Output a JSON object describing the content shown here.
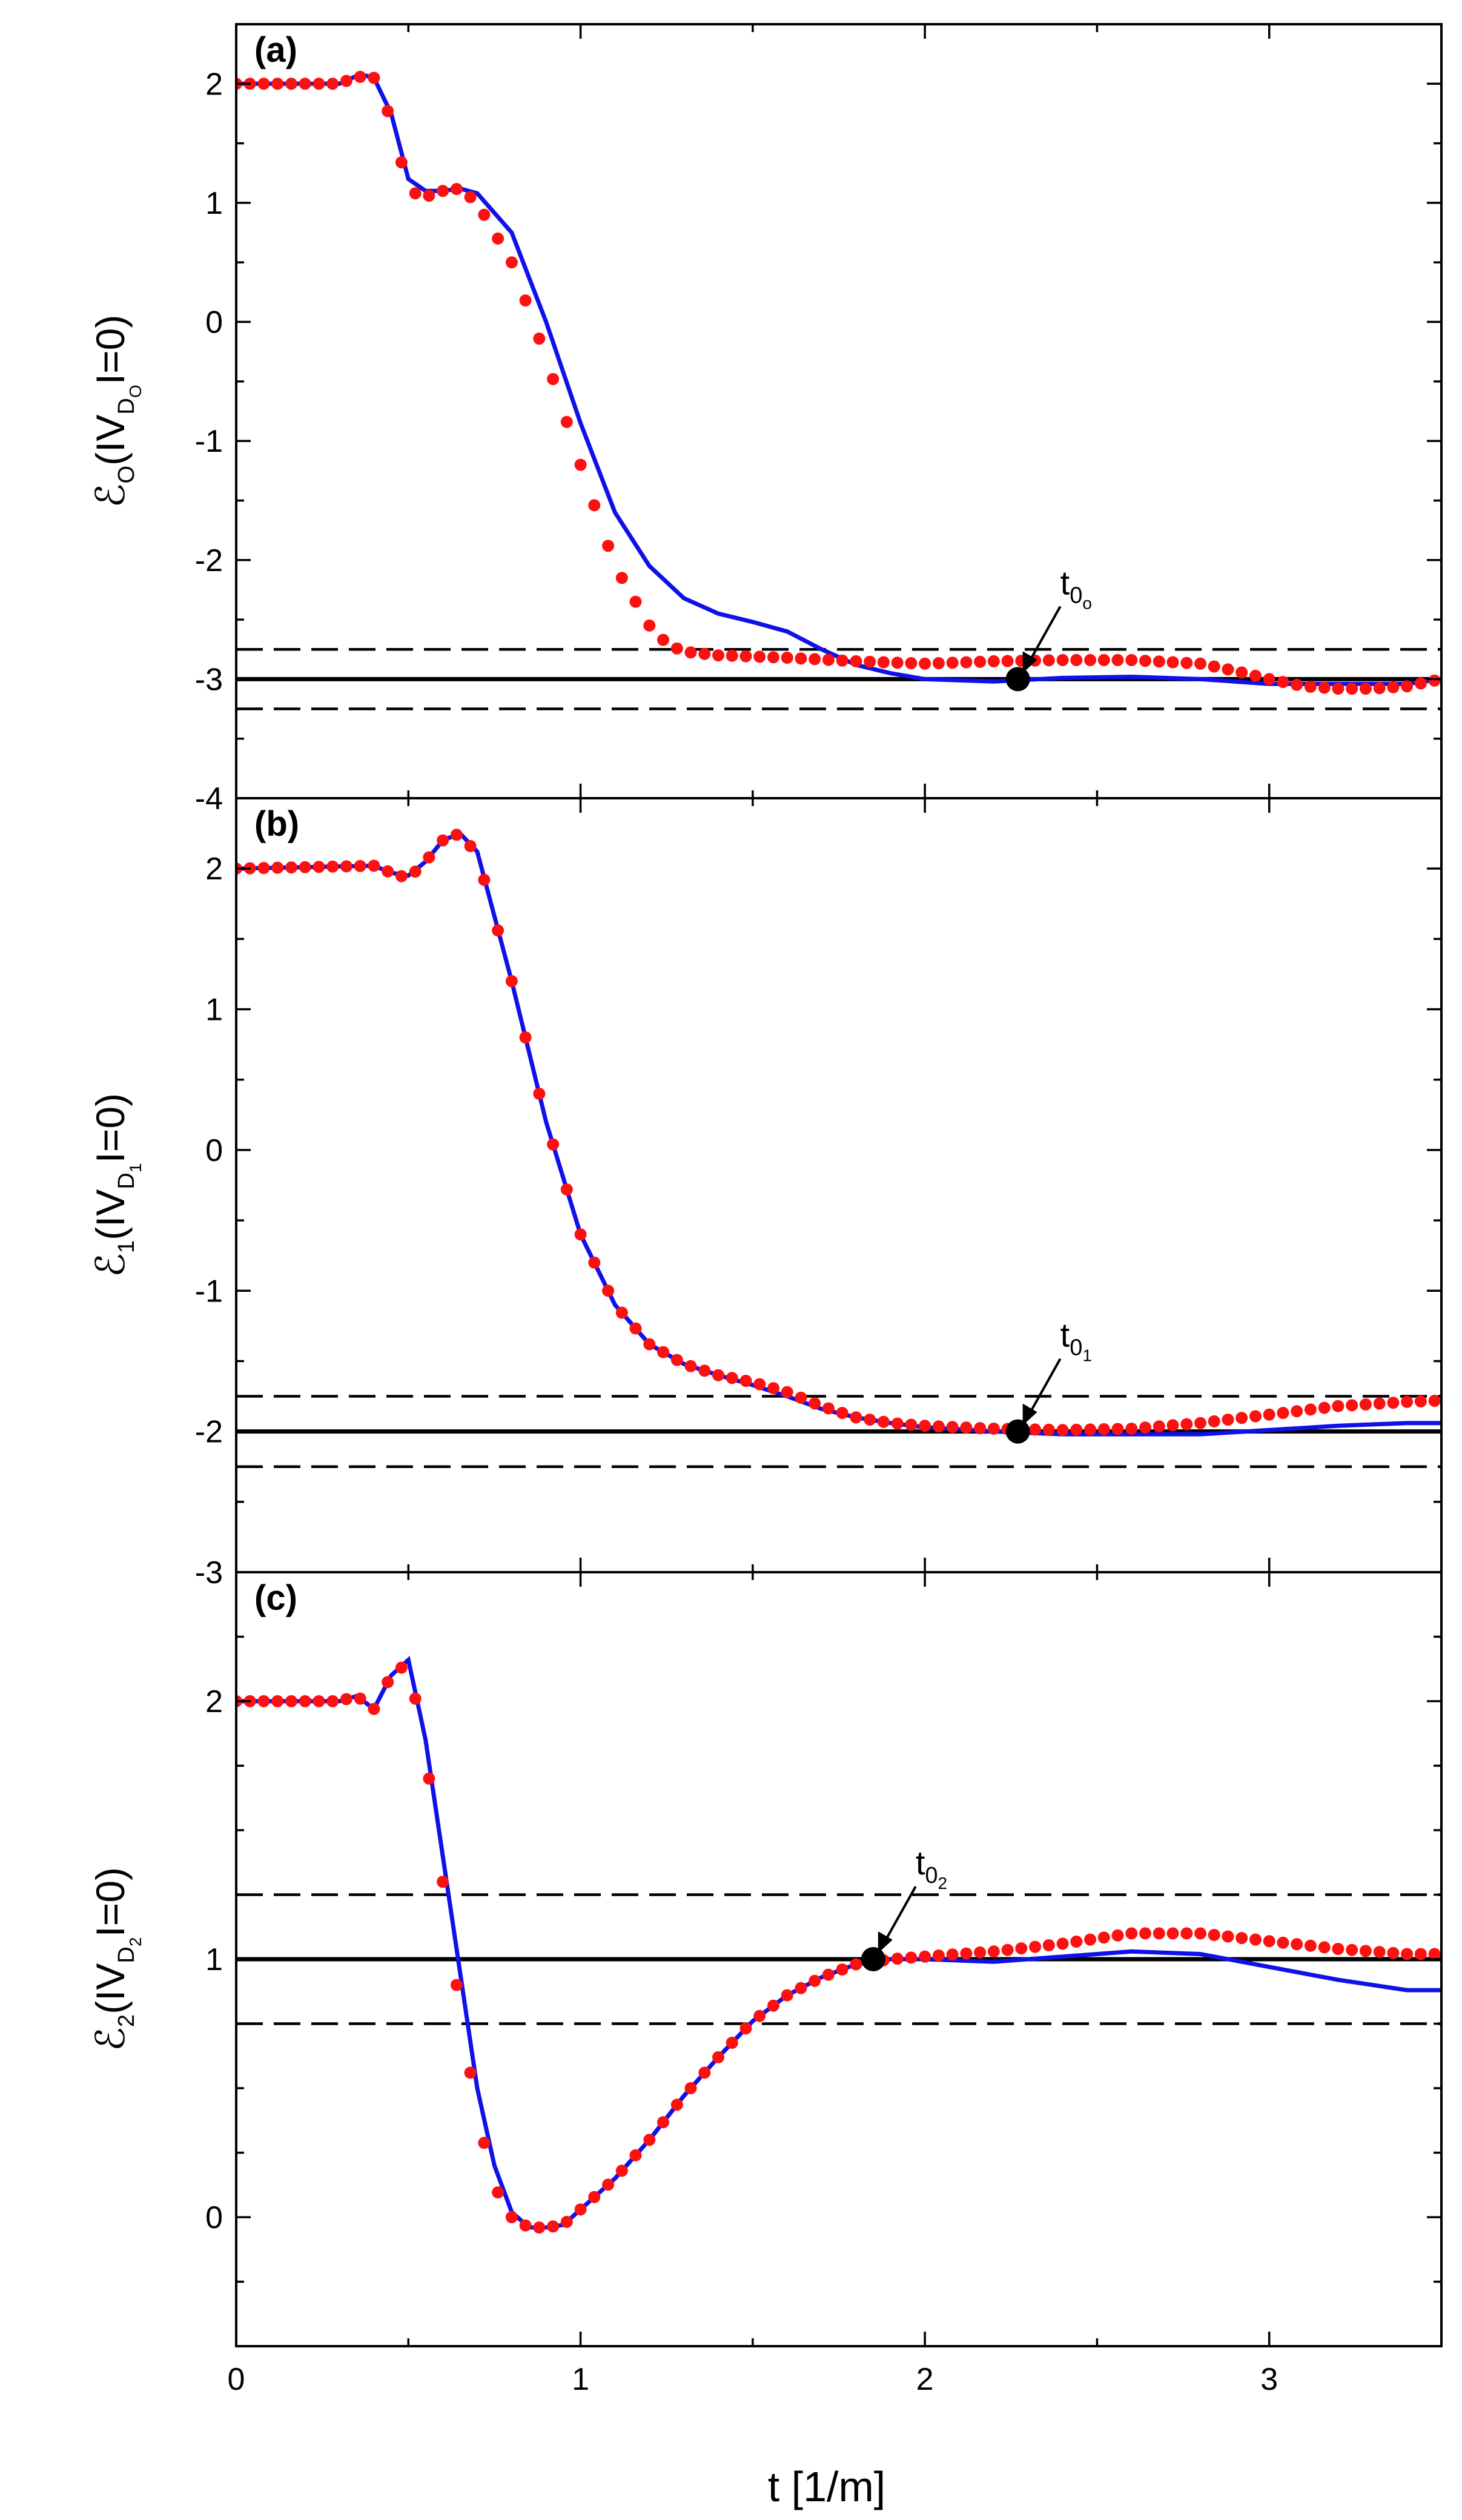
{
  "chart_data": [
    {
      "type": "line",
      "panel_label": "(a)",
      "ylabel": {
        "symbol": "ℰ",
        "sub": "O",
        "text": "(IV",
        "sub2": "D",
        "sub3": "O",
        "tail": "I=0)"
      },
      "xlim": [
        0,
        3.5
      ],
      "ylim": [
        -4,
        2.5
      ],
      "y_ticks": [
        -4,
        -3,
        -2,
        -1,
        0,
        1,
        2
      ],
      "y_tick_labels": [
        "-4",
        "-3",
        "-2",
        "-1",
        "0",
        "1",
        "2"
      ],
      "reference": {
        "solid": -3,
        "dashed": [
          -2.75,
          -3.25
        ]
      },
      "marker": {
        "x": 2.27,
        "y": -3,
        "label": "t",
        "sub": "0",
        "subsub": "o"
      },
      "series": [
        {
          "name": "solid-blue",
          "x": [
            0,
            0.3,
            0.36,
            0.4,
            0.45,
            0.5,
            0.55,
            0.6,
            0.65,
            0.7,
            0.8,
            0.9,
            1.0,
            1.1,
            1.2,
            1.3,
            1.4,
            1.5,
            1.6,
            1.7,
            1.8,
            1.9,
            2.0,
            2.2,
            2.4,
            2.6,
            2.8,
            3.0,
            3.2,
            3.4,
            3.5
          ],
          "y": [
            2.0,
            2.0,
            2.08,
            2.05,
            1.75,
            1.2,
            1.1,
            1.1,
            1.12,
            1.08,
            0.75,
            0.0,
            -0.85,
            -1.6,
            -2.05,
            -2.32,
            -2.45,
            -2.52,
            -2.6,
            -2.75,
            -2.88,
            -2.95,
            -3.0,
            -3.02,
            -2.99,
            -2.98,
            -3.0,
            -3.04,
            -3.04,
            -3.04,
            -3.0
          ]
        },
        {
          "name": "red-dots",
          "x": [
            0,
            0.3,
            0.35,
            0.4,
            0.45,
            0.5,
            0.55,
            0.6,
            0.65,
            0.7,
            0.8,
            0.9,
            1.0,
            1.1,
            1.2,
            1.25,
            1.3,
            1.4,
            1.6,
            1.8,
            2.0,
            2.2,
            2.4,
            2.6,
            2.8,
            2.9,
            3.0,
            3.1,
            3.2,
            3.3,
            3.4,
            3.5
          ],
          "y": [
            2.0,
            2.0,
            2.06,
            2.05,
            1.7,
            1.1,
            1.05,
            1.1,
            1.12,
            1.0,
            0.5,
            -0.3,
            -1.2,
            -2.05,
            -2.55,
            -2.7,
            -2.77,
            -2.8,
            -2.82,
            -2.85,
            -2.87,
            -2.85,
            -2.84,
            -2.84,
            -2.87,
            -2.93,
            -3.0,
            -3.06,
            -3.08,
            -3.08,
            -3.06,
            -3.0
          ]
        }
      ]
    },
    {
      "type": "line",
      "panel_label": "(b)",
      "ylabel": {
        "symbol": "ℰ",
        "sub": "1",
        "text": "(IV",
        "sub2": "D",
        "sub3": "1",
        "tail": "I=0)"
      },
      "xlim": [
        0,
        3.5
      ],
      "ylim": [
        -3,
        2.5
      ],
      "y_ticks": [
        -3,
        -2,
        -1,
        0,
        1,
        2
      ],
      "y_tick_labels": [
        "-3",
        "-2",
        "-1",
        "0",
        "1",
        "2"
      ],
      "reference": {
        "solid": -2,
        "dashed": [
          -1.75,
          -2.25
        ]
      },
      "marker": {
        "x": 2.27,
        "y": -2,
        "label": "t",
        "sub": "0",
        "subsub": "1"
      },
      "series": [
        {
          "name": "solid-blue",
          "x": [
            0,
            0.4,
            0.45,
            0.5,
            0.55,
            0.6,
            0.65,
            0.7,
            0.8,
            0.9,
            1.0,
            1.1,
            1.2,
            1.3,
            1.4,
            1.5,
            1.6,
            1.7,
            1.8,
            1.9,
            2.0,
            2.2,
            2.4,
            2.6,
            2.8,
            3.0,
            3.2,
            3.4,
            3.5
          ],
          "y": [
            2.0,
            2.02,
            1.97,
            1.95,
            2.05,
            2.2,
            2.25,
            2.12,
            1.2,
            0.2,
            -0.6,
            -1.1,
            -1.38,
            -1.52,
            -1.6,
            -1.67,
            -1.75,
            -1.84,
            -1.9,
            -1.94,
            -1.97,
            -2.0,
            -2.02,
            -2.02,
            -2.02,
            -1.99,
            -1.96,
            -1.94,
            -1.94
          ]
        },
        {
          "name": "red-dots",
          "x": [
            0,
            0.4,
            0.45,
            0.5,
            0.55,
            0.6,
            0.65,
            0.7,
            0.8,
            0.9,
            1.0,
            1.1,
            1.2,
            1.3,
            1.4,
            1.5,
            1.6,
            1.7,
            1.8,
            1.9,
            2.0,
            2.2,
            2.4,
            2.6,
            2.8,
            3.0,
            3.2,
            3.4,
            3.5
          ],
          "y": [
            2.0,
            2.02,
            1.97,
            1.93,
            2.05,
            2.2,
            2.25,
            2.1,
            1.2,
            0.2,
            -0.6,
            -1.1,
            -1.38,
            -1.52,
            -1.6,
            -1.65,
            -1.72,
            -1.82,
            -1.9,
            -1.94,
            -1.96,
            -1.98,
            -1.99,
            -1.98,
            -1.94,
            -1.88,
            -1.82,
            -1.79,
            -1.78
          ]
        }
      ]
    },
    {
      "type": "line",
      "panel_label": "(c)",
      "ylabel": {
        "symbol": "ℰ",
        "sub": "2",
        "text": "(IV",
        "sub2": "D",
        "sub3": "2",
        "tail": "I=0)"
      },
      "xlim": [
        0,
        3.5
      ],
      "ylim": [
        -0.5,
        2.5
      ],
      "xlabel": "t [1/m]",
      "x_ticks": [
        0,
        1,
        2,
        3
      ],
      "x_tick_labels": [
        "0",
        "1",
        "2",
        "3"
      ],
      "y_ticks": [
        0,
        1,
        2
      ],
      "y_tick_labels": [
        "0",
        "1",
        "2"
      ],
      "reference": {
        "solid": 1,
        "dashed": [
          1.25,
          0.75
        ]
      },
      "marker": {
        "x": 1.85,
        "y": 1,
        "label": "t",
        "sub": "0",
        "subsub": "2"
      },
      "series": [
        {
          "name": "solid-blue",
          "x": [
            0,
            0.3,
            0.35,
            0.4,
            0.45,
            0.5,
            0.55,
            0.6,
            0.65,
            0.7,
            0.75,
            0.8,
            0.85,
            0.9,
            0.95,
            1.0,
            1.1,
            1.2,
            1.3,
            1.4,
            1.5,
            1.6,
            1.7,
            1.8,
            1.9,
            2.0,
            2.2,
            2.4,
            2.6,
            2.8,
            3.0,
            3.2,
            3.4,
            3.5
          ],
          "y": [
            2.0,
            2.0,
            2.02,
            1.97,
            2.1,
            2.16,
            1.85,
            1.4,
            0.95,
            0.5,
            0.2,
            0.02,
            -0.04,
            -0.04,
            -0.03,
            0.03,
            0.15,
            0.3,
            0.47,
            0.62,
            0.76,
            0.86,
            0.93,
            0.98,
            1.0,
            1.0,
            0.99,
            1.01,
            1.03,
            1.02,
            0.97,
            0.92,
            0.88,
            0.88
          ]
        },
        {
          "name": "red-dots",
          "x": [
            0,
            0.3,
            0.35,
            0.4,
            0.45,
            0.5,
            0.55,
            0.6,
            0.65,
            0.7,
            0.75,
            0.8,
            0.85,
            0.9,
            0.95,
            1.0,
            1.1,
            1.2,
            1.3,
            1.4,
            1.5,
            1.6,
            1.7,
            1.8,
            1.9,
            2.0,
            2.2,
            2.4,
            2.6,
            2.8,
            3.0,
            3.2,
            3.4,
            3.5
          ],
          "y": [
            2.0,
            2.0,
            2.02,
            1.97,
            2.1,
            2.15,
            1.8,
            1.3,
            0.8,
            0.4,
            0.12,
            0.0,
            -0.04,
            -0.04,
            -0.03,
            0.03,
            0.15,
            0.3,
            0.47,
            0.62,
            0.76,
            0.86,
            0.93,
            0.98,
            1.0,
            1.01,
            1.03,
            1.06,
            1.1,
            1.1,
            1.07,
            1.04,
            1.02,
            1.02
          ]
        }
      ]
    }
  ]
}
